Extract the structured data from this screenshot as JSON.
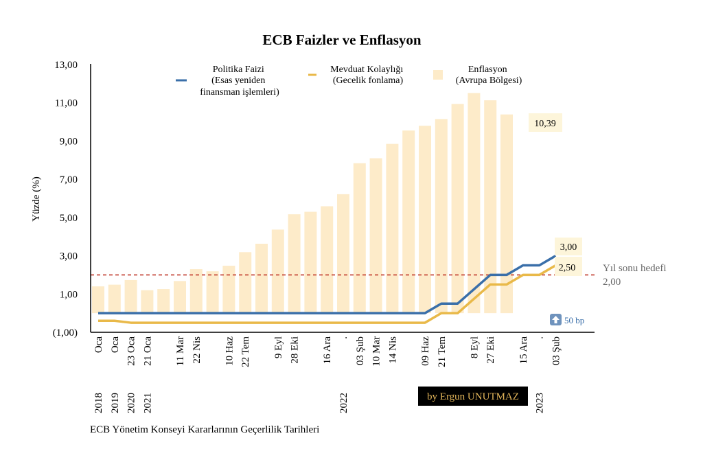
{
  "chart_data": {
    "type": "bar+line",
    "title": "ECB Faizler ve Enflasyon",
    "ylabel": "Yüzde (%)",
    "xlabel": "ECB Yönetim Konseyi Kararlarının Geçerlilik Tarihleri",
    "ylim": [
      -1,
      13
    ],
    "yticks": [
      {
        "v": 13,
        "label": "13,00"
      },
      {
        "v": 11,
        "label": "11,00"
      },
      {
        "v": 9,
        "label": "9,00"
      },
      {
        "v": 7,
        "label": "7,00"
      },
      {
        "v": 5,
        "label": "5,00"
      },
      {
        "v": 3,
        "label": "3,00"
      },
      {
        "v": 1,
        "label": "1,00"
      },
      {
        "v": -1,
        "label": "(1,00)"
      }
    ],
    "slot_count": 29,
    "x_labels": [
      {
        "slot": 0,
        "label": "Oca"
      },
      {
        "slot": 1,
        "label": "Oca"
      },
      {
        "slot": 2,
        "label": "23 Oca"
      },
      {
        "slot": 3,
        "label": "21 Oca"
      },
      {
        "slot": 5,
        "label": "11 Mar"
      },
      {
        "slot": 6,
        "label": "22 Nis"
      },
      {
        "slot": 8,
        "label": "10 Haz"
      },
      {
        "slot": 9,
        "label": "22 Tem"
      },
      {
        "slot": 11,
        "label": "9 Eyl"
      },
      {
        "slot": 12,
        "label": "28 Eki"
      },
      {
        "slot": 14,
        "label": "16 Ara"
      },
      {
        "slot": 15,
        "label": "."
      },
      {
        "slot": 16,
        "label": "03 Şub"
      },
      {
        "slot": 17,
        "label": "10 Mar"
      },
      {
        "slot": 18,
        "label": "14 Nis"
      },
      {
        "slot": 20,
        "label": "09 Haz"
      },
      {
        "slot": 21,
        "label": "21 Tem"
      },
      {
        "slot": 23,
        "label": "8 Eyl"
      },
      {
        "slot": 24,
        "label": "27 Eki"
      },
      {
        "slot": 26,
        "label": "15 Ara"
      },
      {
        "slot": 27,
        "label": "."
      },
      {
        "slot": 28,
        "label": "03 Şub"
      }
    ],
    "year_labels": [
      {
        "slot": 0,
        "label": "2018"
      },
      {
        "slot": 1,
        "label": "2019"
      },
      {
        "slot": 2,
        "label": "2020"
      },
      {
        "slot": 3,
        "label": "2021"
      },
      {
        "slot": 15,
        "label": "2022"
      },
      {
        "slot": 27,
        "label": "2023"
      }
    ],
    "series": [
      {
        "name": "Enflasyon (Avrupa Bölgesi)",
        "legend": [
          "Enflasyon",
          "(Avrupa Bölgesi)"
        ],
        "kind": "bar",
        "color": "#fdebc9",
        "values": [
          1.4,
          1.49,
          1.73,
          1.2,
          1.26,
          1.68,
          2.3,
          2.19,
          2.48,
          3.19,
          3.63,
          4.37,
          5.17,
          5.3,
          5.59,
          6.22,
          7.84,
          8.1,
          8.85,
          9.55,
          9.8,
          10.15,
          10.94,
          11.51,
          11.13,
          10.39
        ]
      },
      {
        "name": "Politika Faizi (Esas yeniden finansman işlemleri)",
        "legend": [
          "Politika Faizi",
          "(Esas yeniden",
          "finansman işlemleri)"
        ],
        "kind": "line",
        "color": "#3a6fa9",
        "points": [
          [
            0,
            0
          ],
          [
            20,
            0
          ],
          [
            21,
            0.5
          ],
          [
            22,
            0.5
          ],
          [
            24,
            2.0
          ],
          [
            25,
            2.0
          ],
          [
            26,
            2.5
          ],
          [
            27,
            2.5
          ],
          [
            28,
            3.0
          ]
        ]
      },
      {
        "name": "Mevduat Kolaylığı (Gecelik fonlama)",
        "legend": [
          "Mevduat Kolaylığı",
          "(Gecelik fonlama)"
        ],
        "kind": "line",
        "color": "#e9b949",
        "points": [
          [
            0,
            -0.4
          ],
          [
            1,
            -0.4
          ],
          [
            2,
            -0.5
          ],
          [
            20,
            -0.5
          ],
          [
            21,
            0
          ],
          [
            22,
            0
          ],
          [
            24,
            1.5
          ],
          [
            25,
            1.5
          ],
          [
            26,
            2.0
          ],
          [
            27,
            2.0
          ],
          [
            28,
            2.5
          ]
        ]
      }
    ],
    "annotations": {
      "inflation_last": "10,39",
      "policy_last": "3,00",
      "deposit_last": "2,50",
      "target_value": 2.0,
      "target_label_1": "Yıl sonu hedefi",
      "target_label_2": "2,00",
      "hike_label": "50 bp",
      "credit": "by Ergun UNUTMAZ"
    },
    "grid": false,
    "legend_position": "top"
  }
}
